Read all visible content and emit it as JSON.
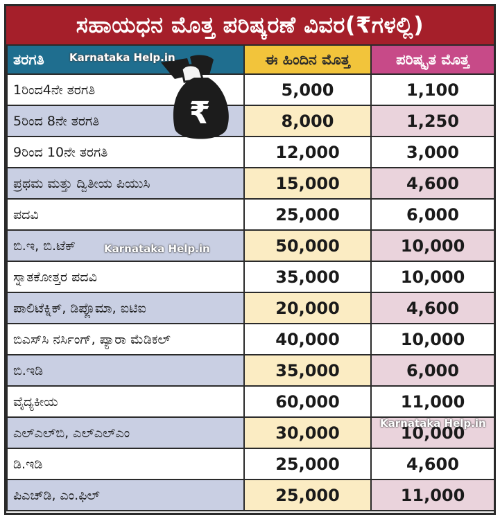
{
  "title": "ಸಹಾಯಧನ ಮೊತ್ತ ಪರಿಷ್ಕರಣೆ ವಿವರ(₹ಗಳಲ್ಲಿ)",
  "columns": [
    "ತರಗತಿ",
    "ಈ ಹಿಂದಿನ ಮೊತ್ತ",
    "ಪರಿಷ್ಕೃತ ಮೊತ್ತ"
  ],
  "rows": [
    {
      "course": "1ರಿಂದ4ನೇ ತರಗತಿ",
      "previous": "5,000",
      "revised": "1,100"
    },
    {
      "course": "5ರಿಂದ 8ನೇ ತರಗತಿ",
      "previous": "8,000",
      "revised": "1,250"
    },
    {
      "course": "9ರಿಂದ 10ನೇ ತರಗತಿ",
      "previous": "12,000",
      "revised": "3,000"
    },
    {
      "course": "ಪ್ರಥಮ ಮತ್ತು ದ್ವಿತೀಯ ಪಿಯುಸಿ",
      "previous": "15,000",
      "revised": "4,600"
    },
    {
      "course": "ಪದವಿ",
      "previous": "25,000",
      "revised": "6,000"
    },
    {
      "course": "ಬಿ.ಇ, ಬಿ.ಟೆಕ್",
      "previous": "50,000",
      "revised": "10,000"
    },
    {
      "course": "ಸ್ನಾತಕೋತ್ತರ ಪದವಿ",
      "previous": "35,000",
      "revised": "10,000"
    },
    {
      "course": "ಪಾಲಿಟೆಕ್ನಿಕ್, ಡಿಪ್ಲೊಮಾ, ಐಟಿಐ",
      "previous": "20,000",
      "revised": "4,600"
    },
    {
      "course": "ಬಿಎಸ್‌ಸಿ ನರ್ಸಿಂಗ್, ಪ್ಯಾರಾ ಮೆಡಿಕಲ್",
      "previous": "40,000",
      "revised": "10,000"
    },
    {
      "course": "ಬಿ.ಇಡಿ",
      "previous": "35,000",
      "revised": "6,000"
    },
    {
      "course": "ವೈದ್ಯಕೀಯ",
      "previous": "60,000",
      "revised": "11,000"
    },
    {
      "course": "ಎಲ್‌ಎಲ್‌ಬಿ, ಎಲ್‌ಎಲ್‌ಎಂ",
      "previous": "30,000",
      "revised": "10,000"
    },
    {
      "course": "ಡಿ.ಇಡಿ",
      "previous": "25,000",
      "revised": "4,600"
    },
    {
      "course": "ಪಿಎಚ್‌ಡಿ, ಎಂ.ಫಿಲ್",
      "previous": "25,000",
      "revised": "11,000"
    }
  ],
  "watermarks": [
    "Karnataka Help.in",
    "Karnataka Help.in",
    "Karnataka Help.in"
  ],
  "icon": "money-bag-icon",
  "colors": {
    "title_bg": "#a51f2a",
    "col1_header": "#1f6e8f",
    "col2_header": "#f2c43b",
    "col3_header": "#c74a88"
  }
}
